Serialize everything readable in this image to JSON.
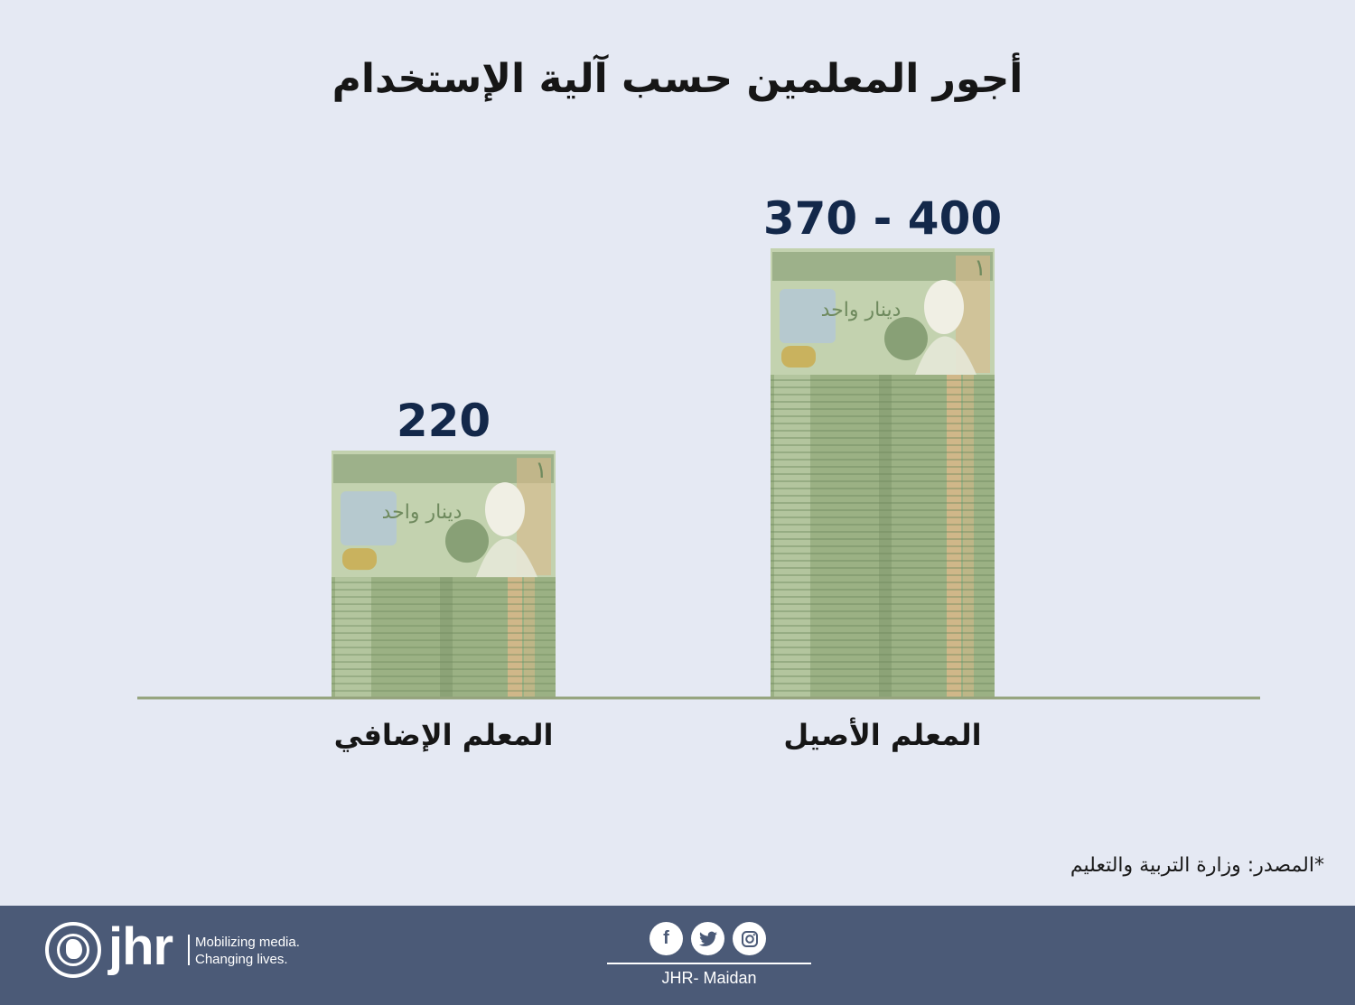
{
  "title": "أجور المعلمين حسب آلية الإستخدام",
  "chart_data": {
    "type": "bar",
    "title": "أجور المعلمين حسب آلية الإستخدام",
    "categories": [
      "المعلم الإضافي",
      "المعلم الأصيل"
    ],
    "values": [
      220,
      400
    ],
    "value_labels": [
      "220",
      "370 - 400"
    ],
    "ranges": [
      null,
      [
        370,
        400
      ]
    ],
    "ylim": [
      0,
      400
    ],
    "grid": false,
    "axis_color": "#94a37c",
    "bar_style": "stacked Jordanian one-dinar banknotes"
  },
  "banknote": {
    "text": "دينار واحد",
    "denomination": "١",
    "colors": {
      "base": "#9bb184",
      "dark": "#6f8a5e",
      "light": "#c3d2af",
      "tan": "#d9b98a",
      "gold": "#c9b25e",
      "blue": "#b6c9cf"
    }
  },
  "source": "*المصدر: وزارة التربية والتعليم",
  "footer": {
    "logo_text": "jhr",
    "tagline_line1": "Mobilizing media.",
    "tagline_line2": "Changing lives.",
    "social_label": "JHR- Maidan",
    "icons": [
      "facebook-icon",
      "twitter-icon",
      "instagram-icon"
    ],
    "background": "#4b5a77"
  }
}
